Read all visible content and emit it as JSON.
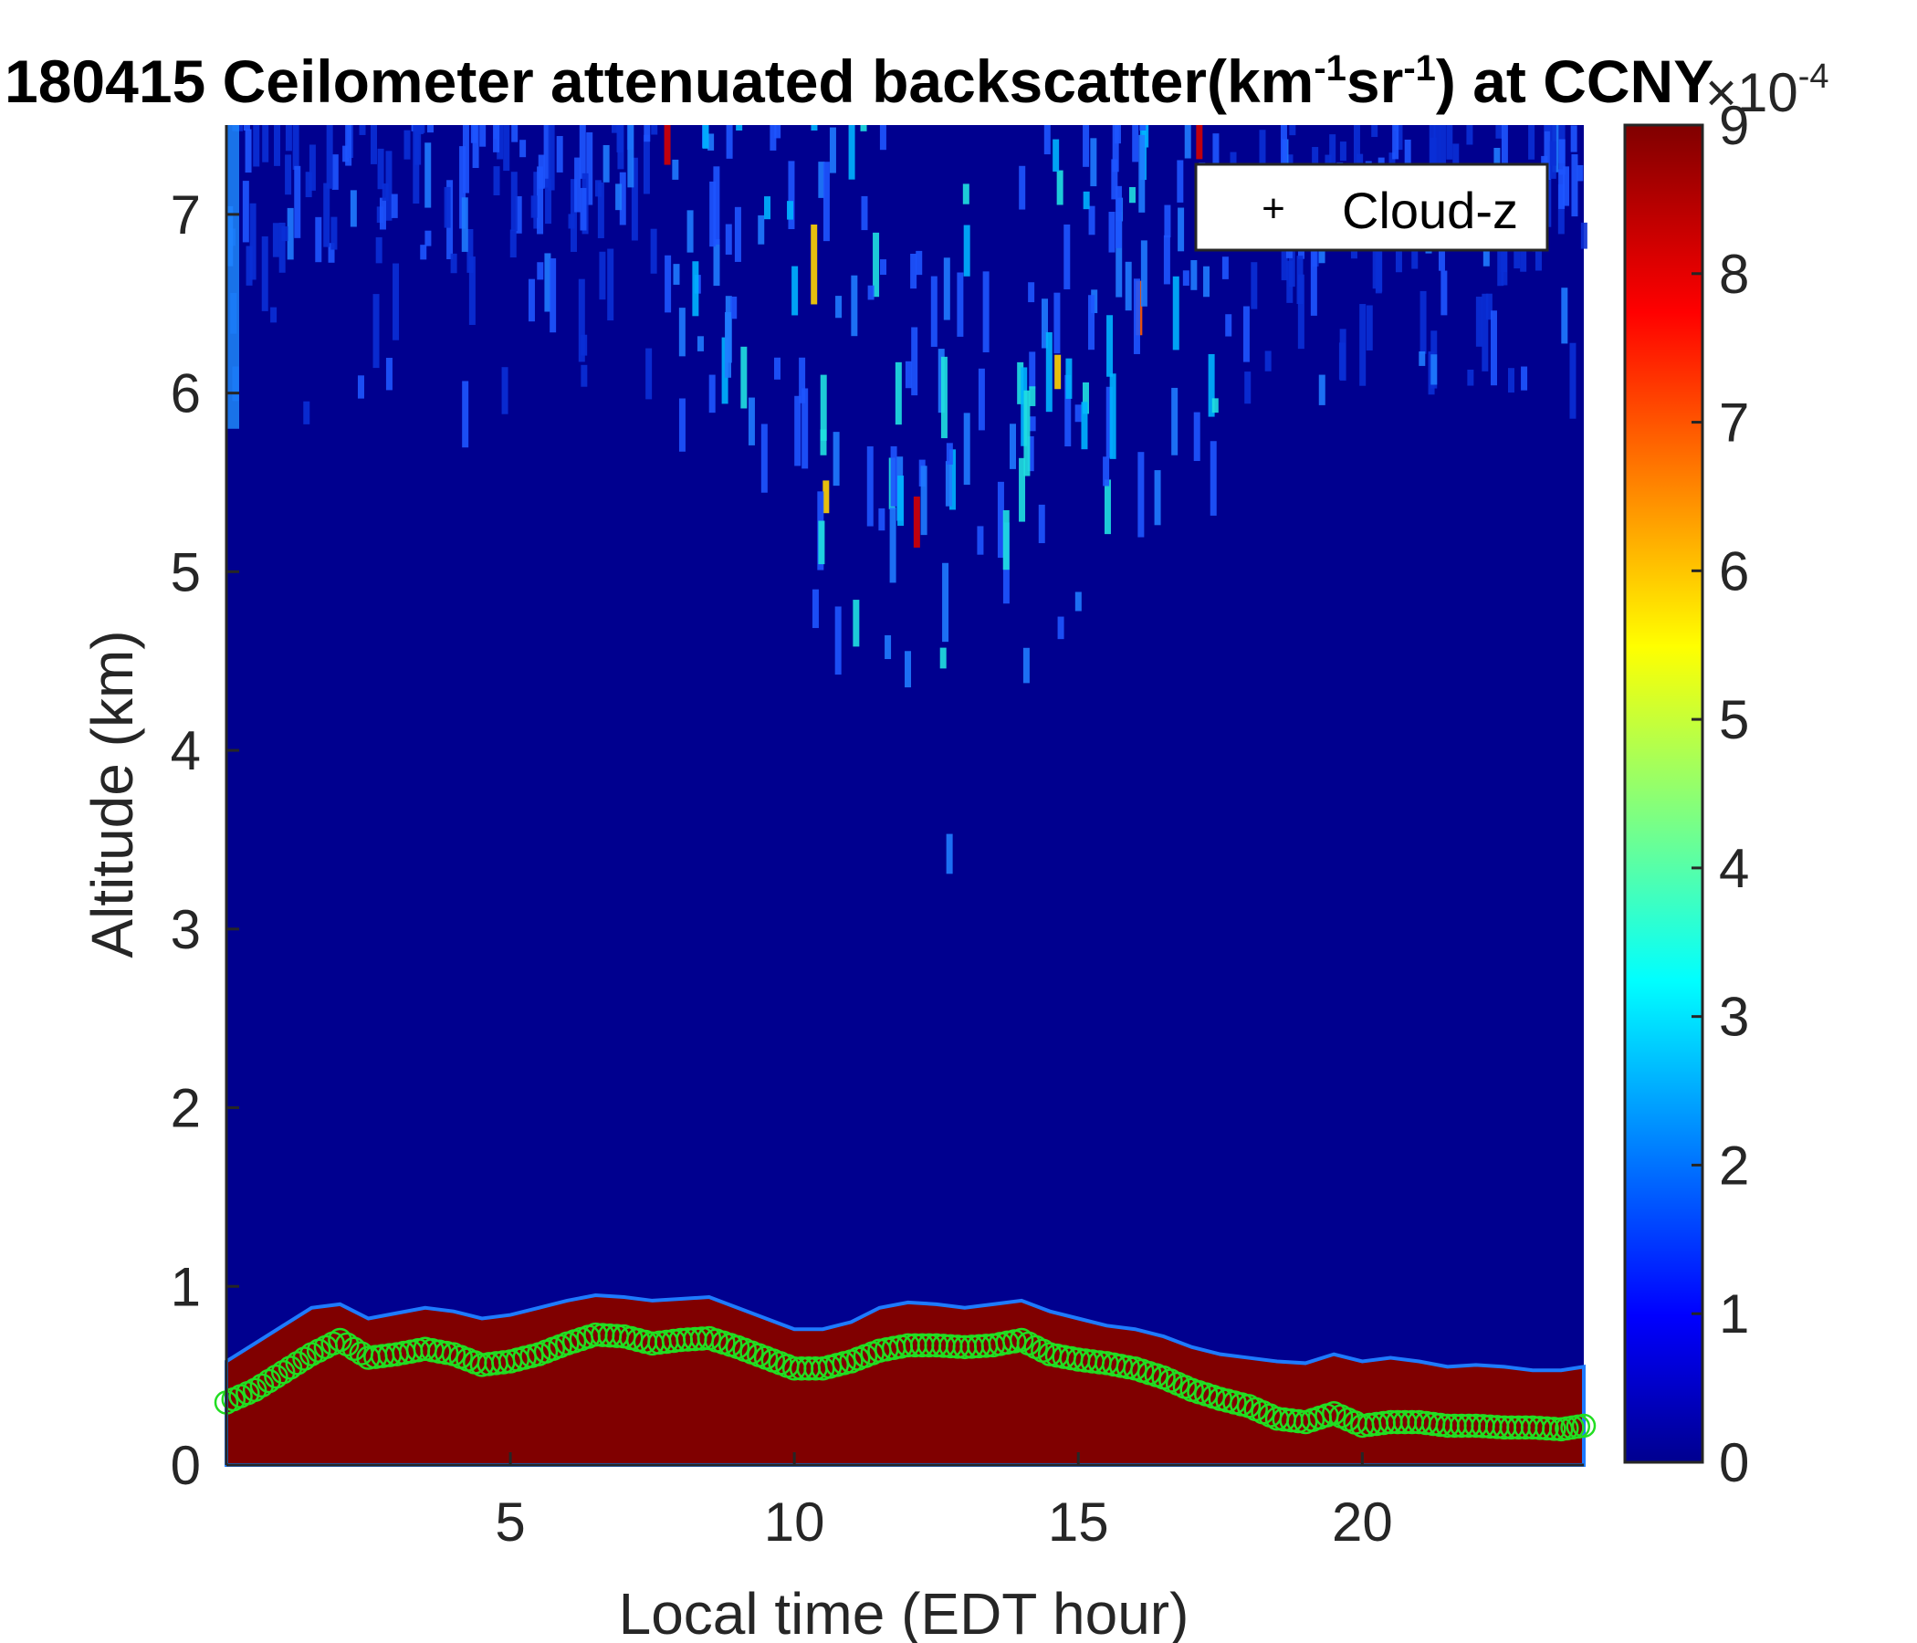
{
  "chart_data": {
    "type": "heatmap",
    "title": "180415 Ceilometer attenuated backscatter(km-1sr-1) at CCNY",
    "title_parts": {
      "main": "180415 Ceilometer attenuated backscatter(km",
      "sup1": "-1",
      "mid": "sr",
      "sup2": "-1",
      "end": ") at CCNY"
    },
    "xlabel": "Local time (EDT hour)",
    "ylabel": "Altitude (km)",
    "xlim": [
      0,
      23.9
    ],
    "ylim": [
      0,
      7.5
    ],
    "xticks": [
      5,
      10,
      15,
      20
    ],
    "yticks": [
      0,
      1,
      2,
      3,
      4,
      5,
      6,
      7
    ],
    "colorbar": {
      "colormap": "jet",
      "range": [
        0,
        9
      ],
      "ticks": [
        0,
        1,
        2,
        3,
        4,
        5,
        6,
        7,
        8,
        9
      ],
      "exponent_base": "×10",
      "exponent_power": "-4"
    },
    "legend": {
      "position": "top-right",
      "entries": [
        {
          "marker": "+",
          "label": "Cloud-z"
        }
      ]
    },
    "series": [
      {
        "name": "Cloud-z",
        "kind": "circle-markers",
        "color": "#22dd22",
        "x": [
          0,
          0.5,
          1,
          1.5,
          2,
          2.5,
          3,
          3.5,
          4,
          4.5,
          5,
          5.5,
          6,
          6.5,
          7,
          7.5,
          8,
          8.5,
          9,
          9.5,
          10,
          10.5,
          11,
          11.5,
          12,
          12.5,
          13,
          13.5,
          14,
          14.5,
          15,
          15.5,
          16,
          16.5,
          17,
          17.5,
          18,
          18.5,
          19,
          19.5,
          20,
          20.5,
          21,
          21.5,
          22,
          22.5,
          23,
          23.5,
          23.9
        ],
        "y": [
          0.35,
          0.42,
          0.52,
          0.62,
          0.7,
          0.6,
          0.62,
          0.65,
          0.62,
          0.56,
          0.58,
          0.62,
          0.68,
          0.73,
          0.72,
          0.68,
          0.7,
          0.71,
          0.66,
          0.6,
          0.54,
          0.54,
          0.58,
          0.64,
          0.67,
          0.67,
          0.66,
          0.67,
          0.7,
          0.62,
          0.59,
          0.57,
          0.54,
          0.49,
          0.42,
          0.37,
          0.33,
          0.26,
          0.24,
          0.29,
          0.22,
          0.24,
          0.24,
          0.22,
          0.22,
          0.21,
          0.21,
          0.2,
          0.22
        ]
      }
    ],
    "boundary_layer_top": {
      "x": [
        0,
        0.5,
        1,
        1.5,
        2,
        2.5,
        3,
        3.5,
        4,
        4.5,
        5,
        5.5,
        6,
        6.5,
        7,
        7.5,
        8,
        8.5,
        9,
        9.5,
        10,
        10.5,
        11,
        11.5,
        12,
        12.5,
        13,
        13.5,
        14,
        14.5,
        15,
        15.5,
        16,
        16.5,
        17,
        17.5,
        18,
        18.5,
        19,
        19.5,
        20,
        20.5,
        21,
        21.5,
        22,
        22.5,
        23,
        23.5,
        23.9
      ],
      "y": [
        0.58,
        0.68,
        0.78,
        0.88,
        0.9,
        0.82,
        0.85,
        0.88,
        0.86,
        0.82,
        0.84,
        0.88,
        0.92,
        0.95,
        0.94,
        0.92,
        0.93,
        0.94,
        0.88,
        0.82,
        0.76,
        0.76,
        0.8,
        0.88,
        0.91,
        0.9,
        0.88,
        0.9,
        0.92,
        0.86,
        0.82,
        0.78,
        0.76,
        0.72,
        0.66,
        0.62,
        0.6,
        0.58,
        0.57,
        0.62,
        0.58,
        0.6,
        0.58,
        0.55,
        0.56,
        0.55,
        0.53,
        0.53,
        0.55
      ]
    },
    "colors": {
      "background": "#00008f",
      "boundary_layer": "#800000"
    }
  }
}
